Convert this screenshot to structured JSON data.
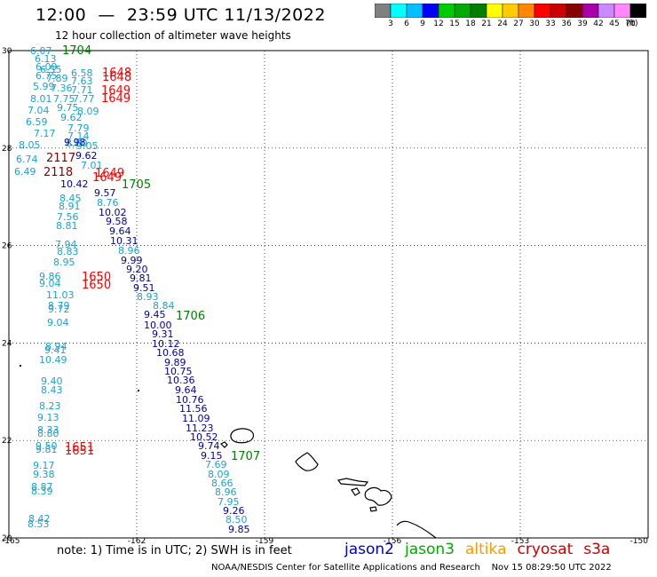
{
  "header": {
    "title": "12:00  —  23:59 UTC 11/13/2022",
    "subtitle": "12 hour collection of altimeter wave heights"
  },
  "colorbar": {
    "colors": [
      "#808080",
      "#00ffff",
      "#00bfff",
      "#0000ff",
      "#00cc00",
      "#00aa00",
      "#008000",
      "#ffff00",
      "#ffcc00",
      "#ff8800",
      "#ff0000",
      "#cc0000",
      "#880000",
      "#aa00aa",
      "#cc88ff",
      "#ff88ff",
      "#000000"
    ],
    "labels": [
      "3",
      "6",
      "9",
      "12",
      "15",
      "18",
      "21",
      "24",
      "27",
      "30",
      "33",
      "36",
      "39",
      "42",
      "45",
      "70"
    ],
    "unit": "(ft)"
  },
  "axes": {
    "y_ticks": [
      "30",
      "28",
      "26",
      "24",
      "22",
      "20"
    ],
    "x_ticks": [
      "-165",
      "-162",
      "-159",
      "-156",
      "-153",
      "-150"
    ]
  },
  "track_labels": [
    {
      "text": "1704",
      "color": "#008000"
    },
    {
      "text": "1705",
      "color": "#008000"
    },
    {
      "text": "1706",
      "color": "#008000"
    },
    {
      "text": "1707",
      "color": "#008000"
    },
    {
      "text": "1648",
      "color": "#ff0000"
    },
    {
      "text": "1648",
      "color": "#ff0000"
    },
    {
      "text": "1649",
      "color": "#ff0000"
    },
    {
      "text": "1649",
      "color": "#ff0000"
    },
    {
      "text": "1649",
      "color": "#ff0000"
    },
    {
      "text": "1649",
      "color": "#ff0000"
    },
    {
      "text": "1650",
      "color": "#ff0000"
    },
    {
      "text": "1650",
      "color": "#ff0000"
    },
    {
      "text": "1651",
      "color": "#ff0000"
    },
    {
      "text": "1651",
      "color": "#ff0000"
    },
    {
      "text": "2117",
      "color": "#880000"
    },
    {
      "text": "2118",
      "color": "#880000"
    }
  ],
  "jason3_values": [
    "9.98",
    "9.62",
    "10.42",
    "9.57",
    "10.02",
    "9.58",
    "9.64",
    "10.31",
    "9.99",
    "9.20",
    "9.81",
    "9.51",
    "9.45",
    "10.00",
    "9.31",
    "10.12",
    "10.68",
    "9.89",
    "10.75",
    "10.36",
    "9.64",
    "10.76",
    "11.56",
    "11.09",
    "11.23",
    "10.52",
    "9.74",
    "9.15",
    "9.26",
    "9.85"
  ],
  "jason3_light": [
    "8.76",
    "8.96",
    "8.93",
    "8.84",
    "7.69",
    "8.09",
    "8.66",
    "8.96",
    "7.95",
    "8.50"
  ],
  "west_values": [
    "6.07",
    "6.13",
    "6.09",
    "6.55",
    "6.75",
    "5.99",
    "8.01",
    "7.04",
    "6.59",
    "7.17",
    "8.05",
    "6.74",
    "6.49",
    "6.58",
    "7.63",
    "7.89",
    "7.36",
    "7.71",
    "7.75",
    "7.77",
    "9.75",
    "8.09",
    "9.62",
    "7.79",
    "7.14",
    "8.80",
    "9.05",
    "7.01",
    "8.45",
    "8.91",
    "7.56",
    "8.81",
    "7.94",
    "8.83",
    "8.95",
    "9.86",
    "9.04",
    "11.03",
    "8.79",
    "9.72",
    "9.04",
    "8.94",
    "9.41",
    "10.49",
    "9.40",
    "8.43",
    "8.23",
    "9.13",
    "8.33",
    "8.80",
    "9.50",
    "9.81",
    "9.17",
    "9.38",
    "8.87",
    "8.39",
    "8.42",
    "8.53"
  ],
  "note": "note:  1)  Time is in UTC;  2) SWH is in feet",
  "satellites": [
    {
      "name": "jason2",
      "color": "#0000cc"
    },
    {
      "name": "jason3",
      "color": "#00aa00"
    },
    {
      "name": "altika",
      "color": "#ff9900"
    },
    {
      "name": "cryosat",
      "color": "#cc0000"
    },
    {
      "name": "s3a",
      "color": "#cc0000"
    }
  ],
  "footer": "NOAA/NESDIS Center for Satellite Applications and Research    Nov 15 08:29:50 UTC 2022"
}
